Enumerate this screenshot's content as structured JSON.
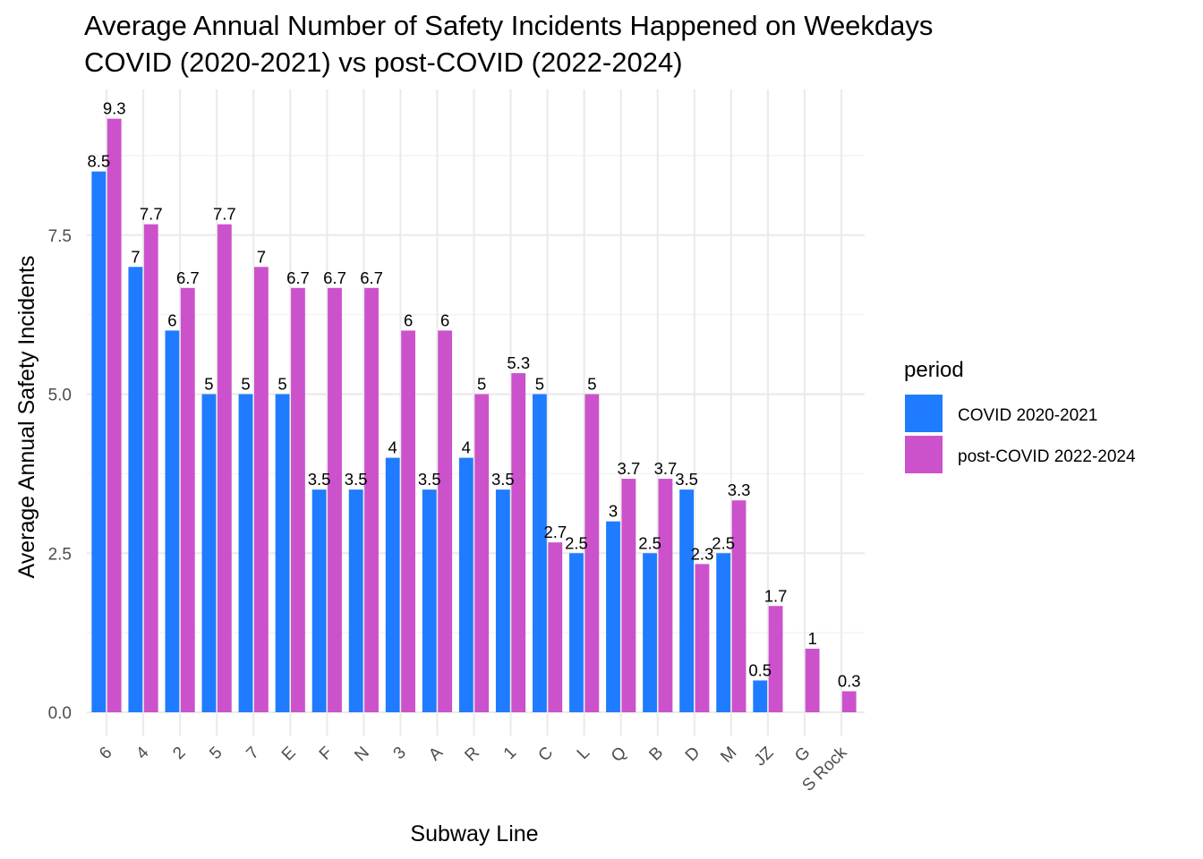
{
  "chart_data": {
    "type": "bar",
    "title": [
      "Average Annual Number of Safety Incidents Happened on Weekdays",
      "COVID (2020-2021) vs post-COVID (2022-2024)"
    ],
    "xlabel": "Subway Line",
    "ylabel": "Average Annual Safety Incidents",
    "ylim": [
      0,
      9.3
    ],
    "y_ticks": [
      0,
      2.5,
      5,
      7.5
    ],
    "y_tick_labels": [
      "0.0",
      "2.5",
      "5.0",
      "7.5"
    ],
    "grid": true,
    "legend_position": "right",
    "legend_title": "period",
    "categories": [
      "6",
      "4",
      "2",
      "5",
      "7",
      "E",
      "F",
      "N",
      "3",
      "A",
      "R",
      "1",
      "C",
      "L",
      "Q",
      "B",
      "D",
      "M",
      "JZ",
      "G",
      "S Rock"
    ],
    "series": [
      {
        "name": "COVID 2020-2021",
        "color": "#1F7BFF",
        "values": [
          8.5,
          7,
          6,
          5,
          5,
          5,
          3.5,
          3.5,
          4,
          3.5,
          4,
          3.5,
          5,
          2.5,
          3,
          2.5,
          3.5,
          2.5,
          0.5,
          null,
          null
        ],
        "labels": [
          "8.5",
          "7",
          "6",
          "5",
          "5",
          "5",
          "3.5",
          "3.5",
          "4",
          "3.5",
          "4",
          "3.5",
          "5",
          "2.5",
          "3",
          "2.5",
          "3.5",
          "2.5",
          "0.5",
          null,
          null
        ]
      },
      {
        "name": "post-COVID 2022-2024",
        "color": "#CC52CC",
        "values": [
          9.33,
          7.67,
          6.67,
          7.67,
          7,
          6.67,
          6.67,
          6.67,
          6,
          6,
          5,
          5.33,
          2.67,
          5,
          3.67,
          3.67,
          2.33,
          3.33,
          1.67,
          1,
          0.33
        ],
        "labels": [
          "9.3",
          "7.7",
          "6.7",
          "7.7",
          "7",
          "6.7",
          "6.7",
          "6.7",
          "6",
          "6",
          "5",
          "5.3",
          "2.7",
          "5",
          "3.7",
          "3.7",
          "2.3",
          "3.3",
          "1.7",
          "1",
          "0.3"
        ]
      }
    ]
  }
}
